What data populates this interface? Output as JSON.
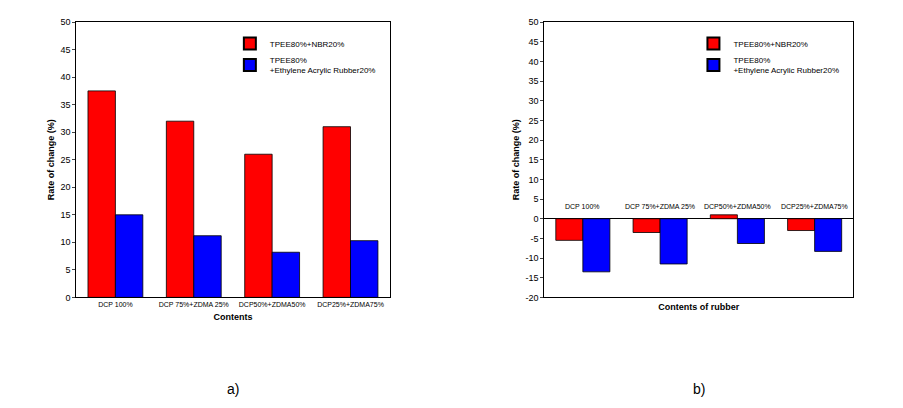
{
  "chart_data": [
    {
      "type": "bar",
      "title": "a)",
      "x_label": "Contents",
      "y_label": "Rate of change (%)",
      "categories": [
        "DCP 100%",
        "DCP 75%+ZDMA 25%",
        "DCP50%+ZDMA50%",
        "DCP25%+ZDMA75%"
      ],
      "series": [
        {
          "name": "TPEE80%+NBR20%",
          "color": "#ff0000",
          "values": [
            37.5,
            32,
            26,
            31
          ]
        },
        {
          "name": "TPEE80%\n+Ethylene Acrylic Rubber20%",
          "color": "#0000ff",
          "values": [
            15,
            11.2,
            8.2,
            10.3
          ]
        }
      ],
      "ylim": [
        0,
        50
      ],
      "yticks": [
        0,
        5,
        10,
        15,
        20,
        25,
        30,
        35,
        40,
        45,
        50
      ],
      "legend": "top right",
      "grid": false
    },
    {
      "type": "bar",
      "title": "b)",
      "x_label": "Contents of rubber",
      "y_label": "Rate of change (%)",
      "categories": [
        "DCP 100%",
        "DCP 75%+ZDMA 25%",
        "DCP50%+ZDMA50%",
        "DCP25%+ZDMA75%"
      ],
      "series": [
        {
          "name": "TPEE80%+NBR20%",
          "color": "#ff0000",
          "values": [
            -5.5,
            -3.5,
            1,
            -3
          ]
        },
        {
          "name": "TPEE80%\n+Ethylene Acrylic Rubber20%",
          "color": "#0000ff",
          "values": [
            -13.5,
            -11.5,
            -6.3,
            -8.3
          ]
        }
      ],
      "ylim": [
        -20,
        50
      ],
      "yticks": [
        -20,
        -15,
        -10,
        -5,
        0,
        5,
        10,
        15,
        20,
        25,
        30,
        35,
        40,
        45,
        50
      ],
      "legend": "top right",
      "grid": false
    }
  ]
}
